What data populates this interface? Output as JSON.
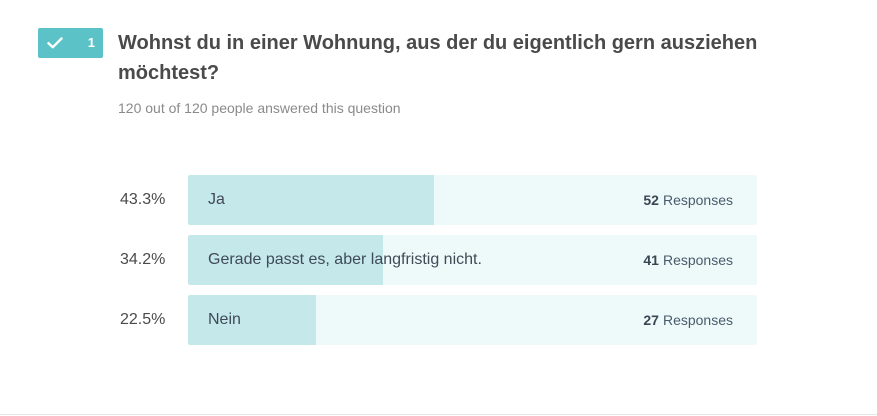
{
  "question": {
    "number": "1",
    "title": "Wohnst du in einer Wohnung, aus der du eigentlich gern ausziehen möchtest?",
    "subtitle": "120 out of 120 people answered this question",
    "status_icon": "check-icon",
    "accent_color": "#5bc2c7"
  },
  "answers": [
    {
      "percent_label": "43.3%",
      "fraction": 0.433,
      "label": "Ja",
      "count": "52",
      "count_suffix": "Responses"
    },
    {
      "percent_label": "34.2%",
      "fraction": 0.342,
      "label": "Gerade passt es, aber langfristig nicht.",
      "count": "41",
      "count_suffix": "Responses"
    },
    {
      "percent_label": "22.5%",
      "fraction": 0.225,
      "label": "Nein",
      "count": "27",
      "count_suffix": "Responses"
    }
  ],
  "colors": {
    "bar_fill": "#c5e8ea",
    "bar_track": "#eefafa"
  }
}
